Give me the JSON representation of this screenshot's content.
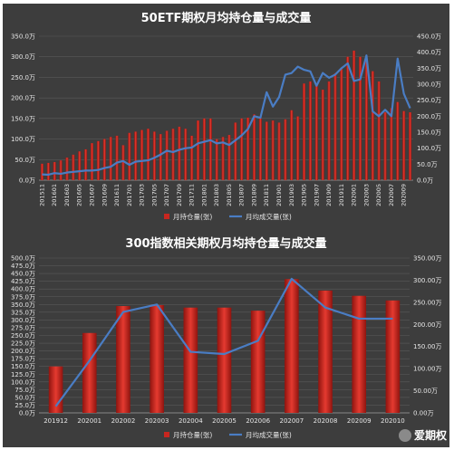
{
  "chart_data": [
    {
      "type": "bar",
      "title": "50ETF期权月均持仓量与成交量",
      "categories": [
        "201511",
        "201512",
        "201601",
        "201602",
        "201603",
        "201604",
        "201605",
        "201606",
        "201607",
        "201608",
        "201609",
        "201610",
        "201611",
        "201612",
        "201701",
        "201702",
        "201703",
        "201704",
        "201705",
        "201706",
        "201707",
        "201708",
        "201709",
        "201710",
        "201711",
        "201712",
        "201801",
        "201802",
        "201803",
        "201804",
        "201805",
        "201806",
        "201807",
        "201808",
        "201809",
        "201810",
        "201811",
        "201812",
        "201901",
        "201902",
        "201903",
        "201904",
        "201905",
        "201906",
        "201907",
        "201908",
        "201909",
        "201910",
        "201911",
        "201912",
        "202001",
        "202002",
        "202003",
        "202004",
        "202005",
        "202006",
        "202007",
        "202008",
        "202009",
        "202010"
      ],
      "x_tick_labels": [
        "201511",
        "201601",
        "201603",
        "201605",
        "201607",
        "201609",
        "201611",
        "201701",
        "201703",
        "201705",
        "201707",
        "201709",
        "201711",
        "201801",
        "201803",
        "201805",
        "201807",
        "201809",
        "201811",
        "201901",
        "201903",
        "201905",
        "201907",
        "201909",
        "201911",
        "202001",
        "202003",
        "202005",
        "202007",
        "202009"
      ],
      "series": [
        {
          "name": "月持仓量(张)",
          "axis": "left",
          "color": "#c8261f",
          "values": [
            40,
            42,
            44,
            48,
            55,
            62,
            70,
            75,
            90,
            95,
            100,
            105,
            108,
            85,
            115,
            118,
            122,
            125,
            118,
            112,
            120,
            125,
            130,
            125,
            108,
            145,
            150,
            150,
            100,
            105,
            110,
            140,
            150,
            152,
            160,
            150,
            142,
            145,
            140,
            148,
            170,
            155,
            235,
            240,
            230,
            220,
            240,
            260,
            270,
            300,
            315,
            300,
            290,
            265,
            240,
            165,
            175,
            190,
            168,
            165
          ]
        },
        {
          "name": "月均成交量(张)",
          "axis": "right",
          "color": "#4a7dc4",
          "values": [
            18,
            17,
            22,
            20,
            24,
            26,
            28,
            30,
            30,
            32,
            38,
            42,
            55,
            60,
            48,
            58,
            60,
            62,
            70,
            80,
            92,
            88,
            95,
            100,
            102,
            115,
            120,
            125,
            115,
            118,
            110,
            125,
            140,
            160,
            200,
            195,
            275,
            230,
            260,
            330,
            335,
            355,
            345,
            340,
            295,
            335,
            320,
            330,
            350,
            365,
            310,
            315,
            390,
            215,
            200,
            220,
            200,
            380,
            270,
            225
          ]
        }
      ],
      "ylim_left": [
        0,
        350
      ],
      "ylim_right": [
        0,
        450
      ],
      "yticks_left": [
        "0.0万",
        "50.0万",
        "100.0万",
        "150.0万",
        "200.0万",
        "250.0万",
        "300.0万",
        "350.0万"
      ],
      "yticks_right": [
        "0.0万",
        "50.0万",
        "100.0万",
        "150.0万",
        "200.0万",
        "250.0万",
        "300.0万",
        "350.0万",
        "400.0万",
        "450.0万"
      ],
      "legend": "bottom"
    },
    {
      "type": "bar",
      "title": "300指数相关期权月均持仓量与成交量",
      "categories": [
        "201912",
        "202001",
        "202002",
        "202003",
        "202004",
        "202005",
        "202006",
        "202007",
        "202008",
        "202009",
        "202010"
      ],
      "series": [
        {
          "name": "月持仓量(张)",
          "axis": "left",
          "color": "#c8261f",
          "values": [
            150,
            258,
            345,
            348,
            340,
            340,
            330,
            432,
            395,
            378,
            363
          ]
        },
        {
          "name": "月均成交量(张)",
          "axis": "right",
          "color": "#4a7dc4",
          "values": [
            15,
            118,
            228,
            245,
            138,
            133,
            163,
            303,
            238,
            213,
            213
          ]
        }
      ],
      "ylim_left": [
        0,
        500
      ],
      "ylim_right": [
        0,
        350
      ],
      "yticks_left": [
        "0.0万",
        "25.0万",
        "50.0万",
        "75.0万",
        "100.0万",
        "125.0万",
        "150.0万",
        "175.0万",
        "200.0万",
        "225.0万",
        "250.0万",
        "275.0万",
        "300.0万",
        "325.0万",
        "350.0万",
        "375.0万",
        "400.0万",
        "425.0万",
        "450.0万",
        "475.0万",
        "500.0万"
      ],
      "yticks_right": [
        "0.00万",
        "50.00万",
        "100.00万",
        "150.00万",
        "200.00万",
        "250.00万",
        "300.00万",
        "350.00万"
      ],
      "legend": "bottom"
    }
  ],
  "watermark": "爱期权"
}
